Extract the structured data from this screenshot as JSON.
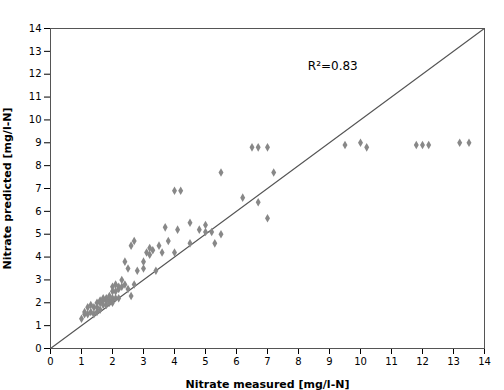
{
  "chart_data": {
    "type": "scatter",
    "xlabel": "Nitrate measured [mg/l-N]",
    "ylabel": "Nitrate predicted [mg/l-N]",
    "xlim": [
      0,
      14
    ],
    "ylim": [
      0,
      14
    ],
    "xticks": [
      0,
      1,
      2,
      3,
      4,
      5,
      6,
      7,
      8,
      9,
      10,
      11,
      12,
      13,
      14
    ],
    "yticks": [
      0,
      1,
      2,
      3,
      4,
      5,
      6,
      7,
      8,
      9,
      10,
      11,
      12,
      13,
      14
    ],
    "grid": false,
    "series": [
      {
        "type": "line",
        "color": "#555555",
        "line_style": "solid",
        "x": [
          0,
          14
        ],
        "values": [
          0,
          14
        ]
      },
      {
        "type": "scatter",
        "color": "#888888",
        "marker": "diamond",
        "x": [
          1.0,
          1.1,
          1.1,
          1.2,
          1.2,
          1.3,
          1.3,
          1.4,
          1.4,
          1.5,
          1.5,
          1.5,
          1.6,
          1.6,
          1.6,
          1.7,
          1.7,
          1.7,
          1.8,
          1.8,
          1.8,
          1.9,
          1.9,
          1.9,
          2.0,
          2.0,
          2.0,
          2.0,
          2.0,
          2.1,
          2.1,
          2.1,
          2.2,
          2.2,
          2.2,
          2.3,
          2.3,
          2.4,
          2.4,
          2.5,
          2.5,
          2.6,
          2.6,
          2.7,
          2.7,
          2.8,
          3.0,
          3.0,
          3.1,
          3.2,
          3.2,
          3.3,
          3.4,
          3.5,
          3.6,
          3.7,
          3.8,
          4.0,
          4.0,
          4.1,
          4.2,
          4.5,
          4.5,
          4.8,
          5.0,
          5.0,
          5.2,
          5.3,
          5.5,
          5.5,
          6.2,
          6.5,
          6.7,
          6.7,
          7.0,
          7.0,
          7.2,
          9.5,
          10.0,
          10.2,
          11.8,
          12.0,
          12.2,
          13.2,
          13.5
        ],
        "values": [
          1.3,
          1.5,
          1.6,
          1.5,
          1.8,
          1.6,
          1.9,
          1.5,
          1.8,
          1.6,
          1.8,
          2.0,
          1.7,
          2.0,
          2.1,
          1.9,
          2.1,
          2.2,
          1.9,
          2.1,
          2.2,
          2.0,
          2.1,
          2.3,
          2.0,
          2.1,
          2.2,
          2.5,
          2.7,
          2.2,
          2.5,
          2.8,
          2.2,
          2.6,
          2.7,
          2.7,
          3.0,
          2.8,
          3.8,
          2.6,
          3.5,
          2.3,
          4.5,
          2.8,
          4.7,
          3.4,
          3.5,
          3.8,
          4.2,
          4.1,
          4.4,
          4.3,
          3.4,
          4.5,
          4.2,
          5.3,
          4.7,
          4.2,
          6.9,
          5.2,
          6.9,
          4.6,
          5.5,
          5.2,
          5.1,
          5.4,
          5.1,
          4.6,
          5.0,
          7.7,
          6.6,
          8.8,
          8.8,
          6.4,
          8.8,
          5.7,
          7.7,
          8.9,
          9.0,
          8.8,
          8.9,
          8.9,
          8.9,
          9.0,
          9.0
        ]
      }
    ],
    "annotations": [
      {
        "text": "R²=0.83",
        "x": 8.3,
        "y": 12.2
      }
    ]
  }
}
